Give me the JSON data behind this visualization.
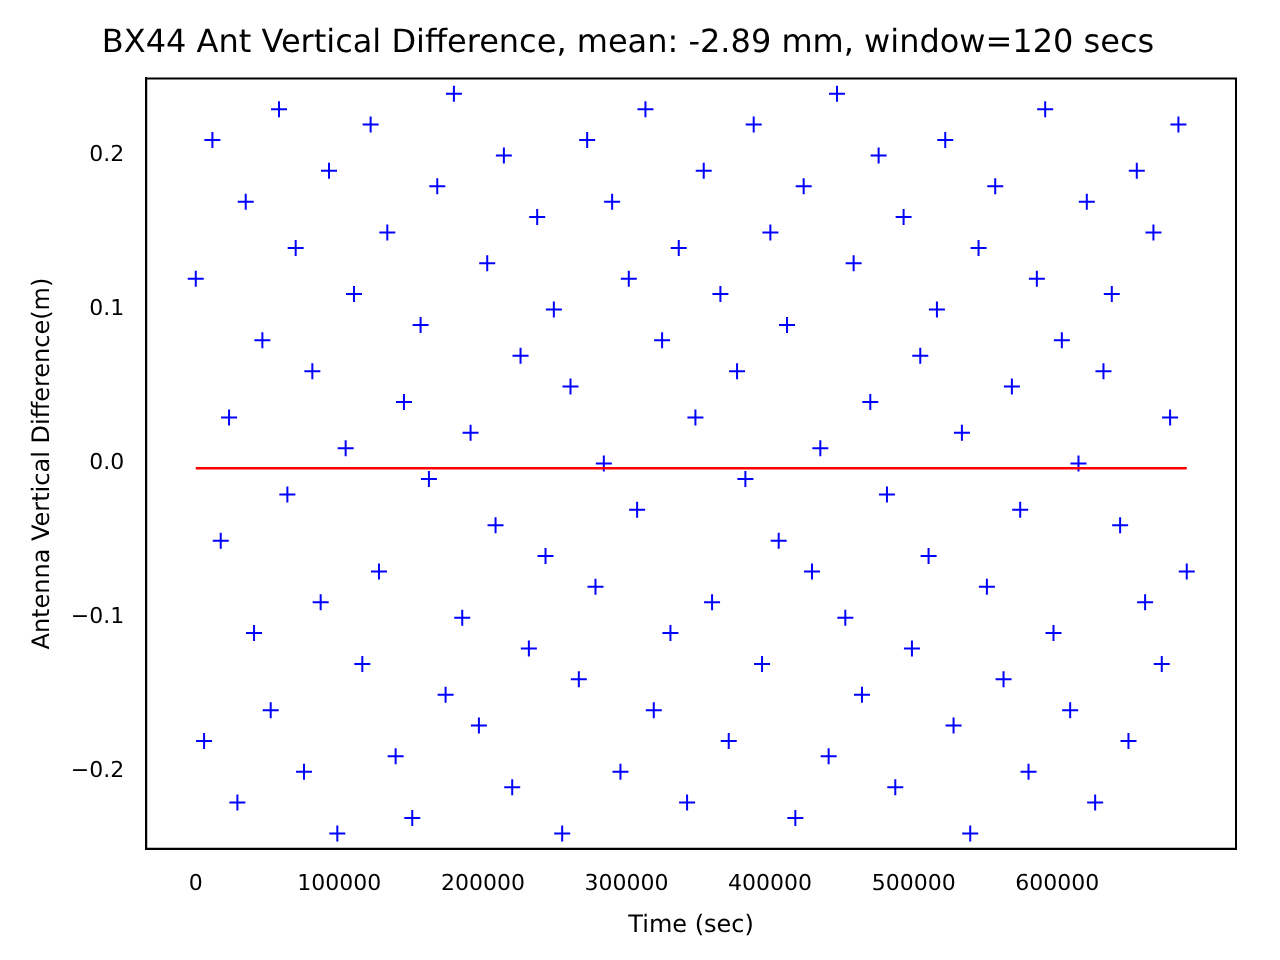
{
  "chart_data": {
    "type": "scatter",
    "title": "BX44 Ant Vertical Difference, mean: -2.89 mm, window=120 secs",
    "xlabel": "Time (sec)",
    "ylabel": "Antenna Vertical Difference(m)",
    "xlim": [
      -34500,
      724500
    ],
    "xticks": [
      0,
      100000,
      200000,
      300000,
      400000,
      500000,
      600000
    ],
    "ylim": [
      -0.25,
      0.25
    ],
    "yticks": [
      {
        "value": -0.2,
        "label": "−0.2"
      },
      {
        "value": -0.1,
        "label": "−0.1"
      },
      {
        "value": 0,
        "label": "0.0"
      },
      {
        "value": 0.1,
        "label": "0.1"
      },
      {
        "value": 0.2,
        "label": "0.2"
      }
    ],
    "grid": false,
    "legend": false,
    "series": [
      {
        "marker": "cross",
        "color": "#0000ff",
        "x": [
          0,
          5800,
          11600,
          17400,
          23200,
          29000,
          34800,
          40600,
          46400,
          52200,
          58000,
          63800,
          69600,
          75400,
          81200,
          87000,
          92800,
          98600,
          104400,
          110200,
          116000,
          121800,
          127600,
          133400,
          139200,
          145000,
          150800,
          156600,
          162400,
          168200,
          174000,
          179800,
          185600,
          191400,
          197200,
          203000,
          208800,
          214600,
          220400,
          226200,
          232000,
          237800,
          243600,
          249400,
          255200,
          261000,
          266800,
          272600,
          278400,
          284200,
          290000,
          295800,
          301600,
          307400,
          313200,
          319000,
          324800,
          330600,
          336400,
          342200,
          348000,
          353800,
          359600,
          365400,
          371200,
          377000,
          382800,
          388600,
          394400,
          400200,
          406000,
          411800,
          417600,
          423400,
          429200,
          435000,
          440800,
          446600,
          452400,
          458200,
          464000,
          469800,
          475600,
          481400,
          487200,
          493000,
          498800,
          504600,
          510400,
          516200,
          522000,
          527800,
          533600,
          539400,
          545200,
          551000,
          556800,
          562600,
          568400,
          574200,
          580000,
          585800,
          591600,
          597400,
          603200,
          609000,
          614800,
          620600,
          626400,
          632200,
          638000,
          643800,
          649600,
          655400,
          661200,
          667000,
          672800,
          678600,
          684400,
          690200
        ],
        "values": [
          0.12,
          -0.18,
          0.21,
          -0.05,
          0.03,
          -0.22,
          0.17,
          -0.11,
          0.08,
          -0.16,
          0.23,
          -0.02,
          0.14,
          -0.2,
          0.06,
          -0.09,
          0.19,
          -0.24,
          0.01,
          0.11,
          -0.13,
          0.22,
          -0.07,
          0.15,
          -0.19,
          0.04,
          -0.23,
          0.09,
          -0.01,
          0.18,
          -0.15,
          0.24,
          -0.1,
          0.02,
          -0.17,
          0.13,
          -0.04,
          0.2,
          -0.21,
          0.07,
          -0.12,
          0.16,
          -0.06,
          0.1,
          -0.24,
          0.05,
          -0.14,
          0.21,
          -0.08,
          0.0,
          0.17,
          -0.2,
          0.12,
          -0.03,
          0.23,
          -0.16,
          0.08,
          -0.11,
          0.14,
          -0.22,
          0.03,
          0.19,
          -0.09,
          0.11,
          -0.18,
          0.06,
          -0.01,
          0.22,
          -0.13,
          0.15,
          -0.05,
          0.09,
          -0.23,
          0.18,
          -0.07,
          0.01,
          -0.19,
          0.24,
          -0.1,
          0.13,
          -0.15,
          0.04,
          0.2,
          -0.02,
          -0.21,
          0.16,
          -0.12,
          0.07,
          -0.06,
          0.1,
          0.21,
          -0.17,
          0.02,
          -0.24,
          0.14,
          -0.08,
          0.18,
          -0.14,
          0.05,
          -0.03,
          -0.2,
          0.12,
          0.23,
          -0.11,
          0.08,
          -0.16,
          0.0,
          0.17,
          -0.22,
          0.06,
          0.11,
          -0.04,
          -0.18,
          0.19,
          -0.09,
          0.15,
          -0.13,
          0.03,
          0.22,
          -0.07
        ]
      },
      {
        "type": "line",
        "marker": "none",
        "line_style": "solid",
        "color": "#ff0000",
        "x": [
          0,
          690200
        ],
        "values": [
          -0.003,
          -0.003
        ]
      }
    ]
  }
}
